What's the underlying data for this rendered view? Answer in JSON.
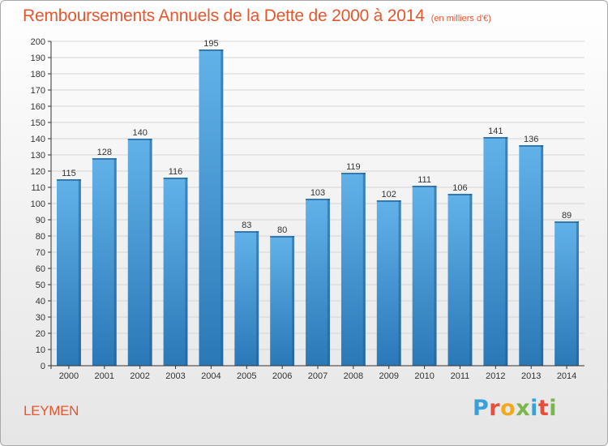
{
  "title": "Remboursements Annuels de la Dette de 2000 à 2014",
  "unit": "(en milliers d'€)",
  "commune": "LEYMEN",
  "logo": {
    "text": "Proxiti",
    "colors": [
      "#3aa0d8",
      "#e84e3c",
      "#f6a81b",
      "#7ab648",
      "#3aa0d8",
      "#e84e3c",
      "#7ab648"
    ]
  },
  "colors": {
    "title": "#e4572e",
    "bar_top": "#62b2ea",
    "bar_bottom": "#2a78b6",
    "bar_side": "#1f5f96",
    "grid": "#d4d4d4",
    "axis": "#333333"
  },
  "chart_data": {
    "type": "bar",
    "categories": [
      "2000",
      "2001",
      "2002",
      "2003",
      "2004",
      "2005",
      "2006",
      "2007",
      "2008",
      "2009",
      "2010",
      "2011",
      "2012",
      "2013",
      "2014"
    ],
    "values": [
      115,
      128,
      140,
      116,
      195,
      83,
      80,
      103,
      119,
      102,
      111,
      106,
      141,
      136,
      89
    ],
    "ylim": [
      0,
      200
    ],
    "ytick_step": 10,
    "grid": true,
    "data_labels": true
  }
}
